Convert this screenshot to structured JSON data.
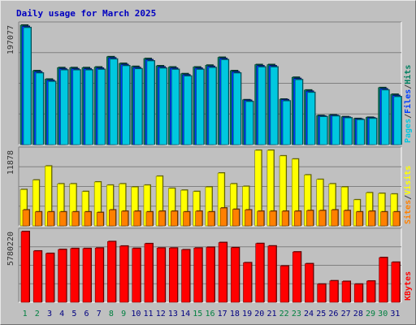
{
  "chart_data": {
    "type": "bar",
    "title": "Daily usage for March 2025",
    "categories": [
      "1",
      "2",
      "3",
      "4",
      "5",
      "6",
      "7",
      "8",
      "9",
      "10",
      "11",
      "12",
      "13",
      "14",
      "15",
      "16",
      "17",
      "18",
      "19",
      "20",
      "21",
      "22",
      "23",
      "24",
      "25",
      "26",
      "27",
      "28",
      "29",
      "30",
      "31"
    ],
    "weekend_days": [
      "1",
      "2",
      "8",
      "9",
      "15",
      "16",
      "22",
      "23",
      "29",
      "30"
    ],
    "panels": [
      {
        "id": "hits-files-pages",
        "y_tick_label": "197077",
        "y_tick_value": 197077,
        "ylim": [
          0,
          197077
        ],
        "side_label": [
          {
            "text": "Pages",
            "color": "#00c8e0"
          },
          {
            "text": "/",
            "color": "#404040"
          },
          {
            "text": "Files",
            "color": "#0040ff"
          },
          {
            "text": "/",
            "color": "#404040"
          },
          {
            "text": "Hits",
            "color": "#008060"
          }
        ],
        "series": [
          {
            "name": "Hits",
            "color": "#008060",
            "values": [
              197077,
              122000,
              108000,
              127000,
              127000,
              127000,
              128000,
              145000,
              134000,
              129000,
              142000,
              130000,
              128000,
              117000,
              128000,
              131000,
              144000,
              122000,
              74000,
              132000,
              132000,
              75000,
              111000,
              90000,
              48000,
              49000,
              46000,
              43000,
              45000,
              94000,
              83000
            ]
          },
          {
            "name": "Files",
            "color": "#0040ff",
            "values": [
              195000,
              120000,
              106000,
              125000,
              125000,
              125000,
              126000,
              143000,
              132000,
              127000,
              140000,
              128000,
              126000,
              115000,
              126000,
              129000,
              142000,
              120000,
              73000,
              130000,
              130000,
              74000,
              109000,
              88000,
              47000,
              48000,
              45000,
              42000,
              44000,
              92000,
              81000
            ]
          },
          {
            "name": "Pages",
            "color": "#00c8e0",
            "values": [
              193000,
              118000,
              104000,
              123000,
              123000,
              123000,
              124000,
              141000,
              130000,
              125000,
              138000,
              126000,
              124000,
              113000,
              124000,
              127000,
              140000,
              118000,
              71000,
              128000,
              128000,
              72000,
              107000,
              86000,
              46000,
              47000,
              44000,
              41000,
              43000,
              90000,
              79000
            ]
          }
        ]
      },
      {
        "id": "visits-sites",
        "y_tick_label": "11878",
        "y_tick_value": 11878,
        "ylim": [
          0,
          11878
        ],
        "side_label": [
          {
            "text": "Sites",
            "color": "#ff8000"
          },
          {
            "text": "/",
            "color": "#404040"
          },
          {
            "text": "Visits",
            "color": "#ffff00"
          }
        ],
        "series": [
          {
            "name": "Visits",
            "color": "#ffff00",
            "values": [
              5700,
              7200,
              9400,
              6600,
              6600,
              5400,
              6900,
              6400,
              6600,
              6100,
              6400,
              7800,
              5900,
              5600,
              5400,
              6100,
              8300,
              6600,
              6200,
              11878,
              11878,
              11000,
              10500,
              8000,
              7300,
              6600,
              6100,
              4100,
              5200,
              5100,
              5000
            ]
          },
          {
            "name": "Sites",
            "color": "#ff8000",
            "values": [
              2500,
              2200,
              2200,
              2200,
              2200,
              2200,
              2100,
              2500,
              2300,
              2300,
              2200,
              2300,
              2300,
              2200,
              2300,
              2200,
              2800,
              2600,
              2500,
              2300,
              2300,
              2300,
              2300,
              2400,
              2400,
              2500,
              2400,
              2200,
              2300,
              2200,
              2200
            ]
          }
        ]
      },
      {
        "id": "kbytes",
        "y_tick_label": "5780220",
        "y_tick_value": 5780220,
        "ylim": [
          0,
          5780220
        ],
        "side_label": [
          {
            "text": "KBytes",
            "color": "#ff0000"
          }
        ],
        "series": [
          {
            "name": "KBytes",
            "color": "#ff0000",
            "values": [
              5780220,
              4190000,
              3990000,
              4310000,
              4390000,
              4390000,
              4430000,
              4960000,
              4590000,
              4400000,
              4790000,
              4430000,
              4430000,
              4290000,
              4430000,
              4490000,
              4880000,
              4460000,
              3230000,
              4800000,
              4600000,
              2960000,
              4110000,
              3150000,
              1480000,
              1750000,
              1700000,
              1480000,
              1730000,
              3650000,
              3270000
            ]
          }
        ]
      }
    ]
  }
}
